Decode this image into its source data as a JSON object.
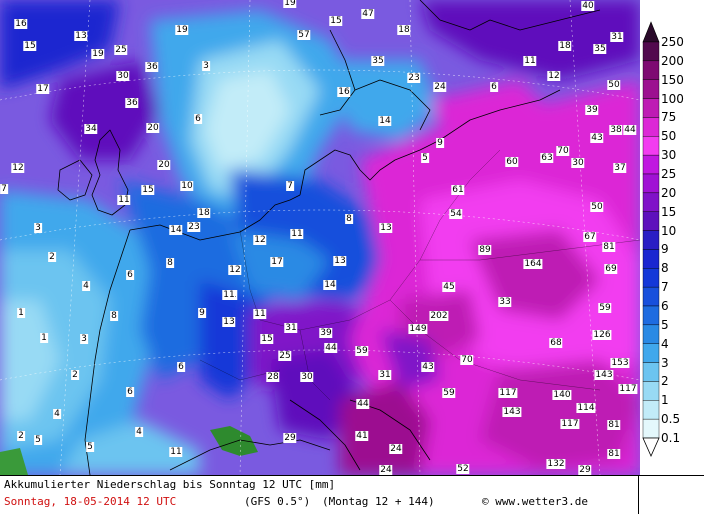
{
  "title": "Akkumulierter Niederschlag bis Sonntag 12 UTC [mm]",
  "date": "Sonntag, 18-05-2014  12 UTC",
  "model": "(GFS 0.5°)",
  "run": "(Montag 12 + 144)",
  "credit": "© www.wetter3.de",
  "legend": {
    "labels": [
      "250",
      "200",
      "150",
      "100",
      "75",
      "50",
      "30",
      "25",
      "20",
      "15",
      "10",
      "9",
      "8",
      "7",
      "6",
      "5",
      "4",
      "3",
      "2",
      "1",
      "0.5",
      "0.1"
    ],
    "colors": [
      "#2a0a2a",
      "#520a4e",
      "#7e0a72",
      "#9c1090",
      "#be1cb4",
      "#dc28d6",
      "#f23cf0",
      "#c018e0",
      "#a012d4",
      "#8012c8",
      "#5e10bc",
      "#2a1ec4",
      "#1a26d0",
      "#1438d8",
      "#1850dc",
      "#1e6ce0",
      "#2a8ae4",
      "#40a8ec",
      "#6cc4f0",
      "#98daf4",
      "#c2ecf8",
      "#e4f8fc"
    ]
  },
  "map_values": [
    "16",
    "15",
    "19",
    "13",
    "19",
    "25",
    "30",
    "36",
    "3",
    "17",
    "34",
    "36",
    "20",
    "6",
    "12",
    "7",
    "20",
    "11",
    "15",
    "10",
    "3",
    "18",
    "14",
    "23",
    "2",
    "6",
    "8",
    "4",
    "1",
    "8",
    "1",
    "3",
    "2",
    "6",
    "4",
    "2",
    "5",
    "5",
    "4",
    "11",
    "11",
    "6",
    "19",
    "15",
    "47",
    "18",
    "57",
    "35",
    "40",
    "31",
    "18",
    "35",
    "11",
    "12",
    "16",
    "23",
    "24",
    "6",
    "50",
    "14",
    "9",
    "5",
    "39",
    "43",
    "38",
    "44",
    "60",
    "63",
    "70",
    "30",
    "37",
    "61",
    "54",
    "50",
    "7",
    "11",
    "8",
    "13",
    "12",
    "12",
    "17",
    "13",
    "14",
    "11",
    "9",
    "13",
    "11",
    "31",
    "15",
    "25",
    "28",
    "30",
    "39",
    "44",
    "59",
    "31",
    "45",
    "33",
    "202",
    "149",
    "89",
    "164",
    "67",
    "81",
    "69",
    "59",
    "126",
    "68",
    "153",
    "143",
    "117",
    "43",
    "70",
    "59",
    "117",
    "140",
    "143",
    "114",
    "81",
    "117",
    "44",
    "41",
    "24",
    "29",
    "24",
    "132",
    "52",
    "81",
    "29"
  ]
}
